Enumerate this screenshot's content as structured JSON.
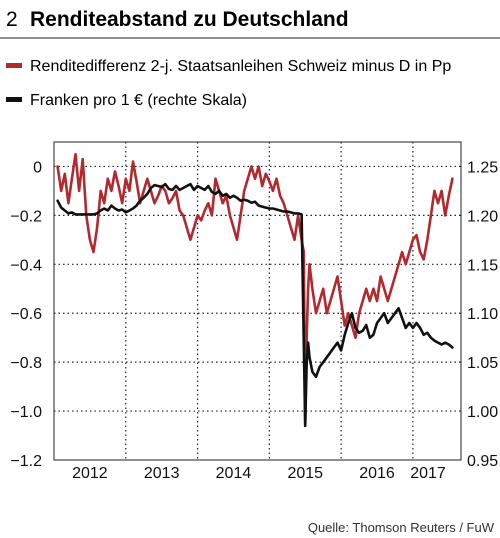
{
  "header": {
    "number": "2",
    "title": "Renditeabstand zu Deutschland"
  },
  "source": "Quelle: Thomson Reuters / FuW",
  "colors": {
    "series_red": "#b02a30",
    "series_black": "#111111",
    "grid": "#222222"
  },
  "chart_data": {
    "type": "line",
    "x_ticks": [
      "2012",
      "2013",
      "2014",
      "2015",
      "2016",
      "2017"
    ],
    "xlim": [
      2011.5,
      2017.17
    ],
    "ylim_left": [
      -1.2,
      0.1
    ],
    "ylim_right": [
      0.95,
      1.275
    ],
    "yticks_left": [
      "0",
      "−0.2",
      "−0.4",
      "−0.6",
      "−0.8",
      "−1.0",
      "−1.2"
    ],
    "yticks_right": [
      "1.25",
      "1.20",
      "1.15",
      "1.10",
      "1.05",
      "1.00",
      "0.95"
    ],
    "grid": "dotted",
    "series": [
      {
        "name": "Renditedifferenz 2-j. Staatsanleihen Schweiz minus D in Pp",
        "axis": "left",
        "color": "#b02a30",
        "x": [
          2011.55,
          2011.6,
          2011.65,
          2011.7,
          2011.75,
          2011.8,
          2011.85,
          2011.9,
          2011.95,
          2012.0,
          2012.05,
          2012.1,
          2012.15,
          2012.2,
          2012.25,
          2012.3,
          2012.35,
          2012.4,
          2012.45,
          2012.5,
          2012.55,
          2012.6,
          2012.65,
          2012.7,
          2012.75,
          2012.8,
          2012.85,
          2012.9,
          2012.95,
          2013.0,
          2013.05,
          2013.1,
          2013.15,
          2013.2,
          2013.25,
          2013.3,
          2013.35,
          2013.4,
          2013.45,
          2013.5,
          2013.55,
          2013.6,
          2013.65,
          2013.7,
          2013.75,
          2013.8,
          2013.85,
          2013.9,
          2013.95,
          2014.0,
          2014.05,
          2014.1,
          2014.15,
          2014.2,
          2014.25,
          2014.3,
          2014.35,
          2014.4,
          2014.45,
          2014.5,
          2014.55,
          2014.6,
          2014.65,
          2014.7,
          2014.75,
          2014.8,
          2014.85,
          2014.9,
          2014.95,
          2014.98,
          2015.0,
          2015.02,
          2015.04,
          2015.06,
          2015.1,
          2015.15,
          2015.2,
          2015.25,
          2015.3,
          2015.35,
          2015.4,
          2015.45,
          2015.5,
          2015.55,
          2015.6,
          2015.65,
          2015.7,
          2015.75,
          2015.8,
          2015.85,
          2015.9,
          2015.95,
          2016.0,
          2016.05,
          2016.1,
          2016.15,
          2016.2,
          2016.25,
          2016.3,
          2016.35,
          2016.4,
          2016.45,
          2016.5,
          2016.55,
          2016.6,
          2016.65,
          2016.7,
          2016.75,
          2016.8,
          2016.85,
          2016.9,
          2016.95,
          2017.0,
          2017.05
        ],
        "y": [
          0.0,
          -0.1,
          -0.03,
          -0.15,
          -0.05,
          0.05,
          -0.1,
          0.03,
          -0.2,
          -0.3,
          -0.35,
          -0.25,
          -0.1,
          -0.15,
          -0.05,
          -0.1,
          -0.02,
          -0.08,
          -0.15,
          -0.05,
          -0.1,
          0.02,
          -0.06,
          -0.15,
          -0.1,
          -0.05,
          -0.1,
          -0.15,
          -0.12,
          -0.08,
          -0.1,
          -0.15,
          -0.13,
          -0.1,
          -0.18,
          -0.2,
          -0.25,
          -0.3,
          -0.25,
          -0.2,
          -0.22,
          -0.18,
          -0.15,
          -0.2,
          -0.05,
          -0.1,
          -0.15,
          -0.12,
          -0.2,
          -0.25,
          -0.3,
          -0.2,
          -0.1,
          -0.05,
          0.0,
          -0.05,
          0.0,
          -0.08,
          -0.03,
          -0.06,
          -0.1,
          -0.05,
          -0.12,
          -0.15,
          -0.2,
          -0.25,
          -0.3,
          -0.2,
          -0.3,
          -0.35,
          -1.05,
          -0.7,
          -0.5,
          -0.4,
          -0.5,
          -0.6,
          -0.55,
          -0.5,
          -0.6,
          -0.55,
          -0.5,
          -0.45,
          -0.55,
          -0.65,
          -0.6,
          -0.65,
          -0.7,
          -0.6,
          -0.55,
          -0.5,
          -0.55,
          -0.5,
          -0.55,
          -0.45,
          -0.5,
          -0.55,
          -0.5,
          -0.45,
          -0.4,
          -0.35,
          -0.4,
          -0.35,
          -0.3,
          -0.28,
          -0.35,
          -0.38,
          -0.3,
          -0.2,
          -0.1,
          -0.15,
          -0.1,
          -0.2,
          -0.12,
          -0.05
        ]
      },
      {
        "name": "Franken pro 1 € (rechte Skala)",
        "axis": "right",
        "color": "#111111",
        "x": [
          2011.55,
          2011.6,
          2011.65,
          2011.7,
          2011.75,
          2011.8,
          2011.85,
          2011.9,
          2011.95,
          2012.0,
          2012.05,
          2012.1,
          2012.15,
          2012.2,
          2012.25,
          2012.3,
          2012.35,
          2012.4,
          2012.45,
          2012.5,
          2012.55,
          2012.6,
          2012.65,
          2012.7,
          2012.75,
          2012.8,
          2012.85,
          2012.9,
          2012.95,
          2013.0,
          2013.05,
          2013.1,
          2013.15,
          2013.2,
          2013.25,
          2013.3,
          2013.35,
          2013.4,
          2013.45,
          2013.5,
          2013.55,
          2013.6,
          2013.65,
          2013.7,
          2013.75,
          2013.8,
          2013.85,
          2013.9,
          2013.95,
          2014.0,
          2014.05,
          2014.1,
          2014.15,
          2014.2,
          2014.25,
          2014.3,
          2014.35,
          2014.4,
          2014.45,
          2014.5,
          2014.55,
          2014.6,
          2014.65,
          2014.7,
          2014.75,
          2014.8,
          2014.85,
          2014.9,
          2014.95,
          2015.0,
          2015.02,
          2015.04,
          2015.06,
          2015.1,
          2015.15,
          2015.2,
          2015.25,
          2015.3,
          2015.35,
          2015.4,
          2015.45,
          2015.5,
          2015.55,
          2015.6,
          2015.65,
          2015.7,
          2015.75,
          2015.8,
          2015.85,
          2015.9,
          2015.95,
          2016.0,
          2016.05,
          2016.1,
          2016.15,
          2016.2,
          2016.25,
          2016.3,
          2016.35,
          2016.4,
          2016.45,
          2016.5,
          2016.55,
          2016.6,
          2016.65,
          2016.7,
          2016.75,
          2016.8,
          2016.85,
          2016.9,
          2016.95,
          2017.0,
          2017.05
        ],
        "y": [
          1.215,
          1.208,
          1.205,
          1.202,
          1.203,
          1.201,
          1.201,
          1.201,
          1.201,
          1.201,
          1.201,
          1.202,
          1.205,
          1.207,
          1.205,
          1.21,
          1.207,
          1.205,
          1.206,
          1.203,
          1.205,
          1.207,
          1.21,
          1.215,
          1.218,
          1.222,
          1.228,
          1.231,
          1.23,
          1.229,
          1.232,
          1.227,
          1.226,
          1.23,
          1.226,
          1.228,
          1.23,
          1.232,
          1.226,
          1.23,
          1.228,
          1.226,
          1.23,
          1.224,
          1.222,
          1.225,
          1.22,
          1.222,
          1.218,
          1.22,
          1.218,
          1.215,
          1.216,
          1.215,
          1.213,
          1.214,
          1.21,
          1.209,
          1.208,
          1.207,
          1.207,
          1.206,
          1.205,
          1.204,
          1.204,
          1.203,
          1.202,
          1.202,
          1.201,
          0.985,
          1.05,
          1.07,
          1.055,
          1.04,
          1.035,
          1.045,
          1.05,
          1.055,
          1.06,
          1.065,
          1.07,
          1.062,
          1.078,
          1.09,
          1.1,
          1.085,
          1.08,
          1.082,
          1.088,
          1.075,
          1.078,
          1.09,
          1.095,
          1.1,
          1.09,
          1.095,
          1.1,
          1.105,
          1.095,
          1.085,
          1.09,
          1.085,
          1.09,
          1.085,
          1.078,
          1.08,
          1.075,
          1.072,
          1.07,
          1.068,
          1.07,
          1.068,
          1.065
        ]
      }
    ]
  }
}
